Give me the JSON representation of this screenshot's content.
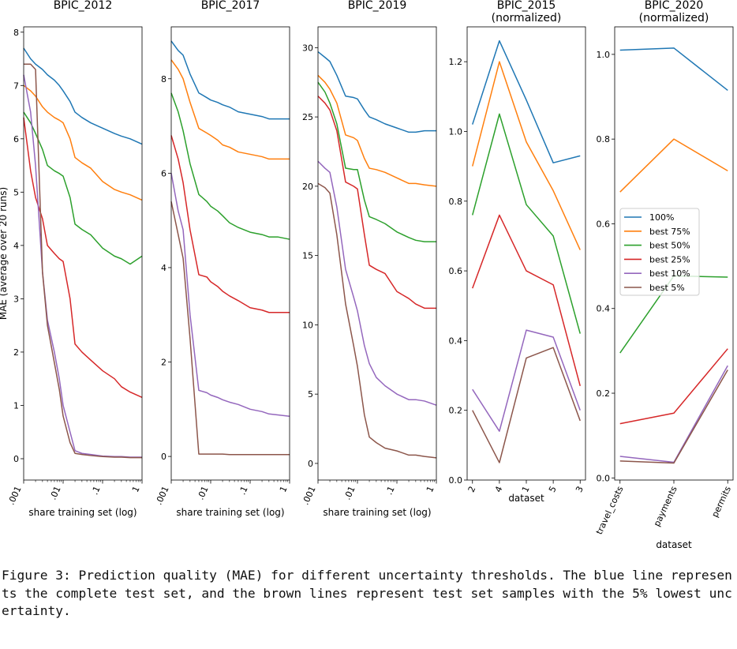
{
  "caption": "Figure 3: Prediction quality (MAE) for different uncertainty thresholds. The blue line represents the complete test set, and the brown lines represent test set samples with the 5% lowest uncertainty.",
  "series_names": [
    "100%",
    "best 75%",
    "best 50%",
    "best 25%",
    "best 10%",
    "best 5%"
  ],
  "series_colors": [
    "#1f77b4",
    "#ff7f0e",
    "#2ca02c",
    "#d62728",
    "#9467bd",
    "#8c564b"
  ],
  "chart_data": [
    {
      "type": "line",
      "title": "BPIC_2012",
      "xlabel": "share training set (log)",
      "ylabel": "MAE (average over 20 runs)",
      "x_scale": "log",
      "xlim": [
        0.001,
        1
      ],
      "ylim": [
        -0.4,
        8.1
      ],
      "yticks": [
        0,
        1,
        2,
        3,
        4,
        5,
        6,
        7,
        8
      ],
      "ytick_labels": [
        "0",
        "1",
        "2",
        "3",
        "4",
        "5",
        "6",
        "7",
        "8"
      ],
      "xticks": [
        0.001,
        0.01,
        0.1,
        1
      ],
      "xtick_labels": [
        ".001",
        ".01",
        ".1",
        "1"
      ],
      "x": [
        0.001,
        0.0015,
        0.002,
        0.003,
        0.004,
        0.006,
        0.008,
        0.01,
        0.015,
        0.02,
        0.03,
        0.05,
        0.1,
        0.2,
        0.3,
        0.5,
        1.0
      ],
      "series": [
        {
          "name": "100%",
          "values": [
            7.7,
            7.5,
            7.4,
            7.3,
            7.2,
            7.1,
            7.0,
            6.9,
            6.7,
            6.5,
            6.4,
            6.3,
            6.2,
            6.1,
            6.05,
            6.0,
            5.9
          ]
        },
        {
          "name": "best 75%",
          "values": [
            7.0,
            6.9,
            6.8,
            6.6,
            6.5,
            6.4,
            6.35,
            6.3,
            6.0,
            5.65,
            5.55,
            5.45,
            5.2,
            5.05,
            5.0,
            4.95,
            4.85
          ]
        },
        {
          "name": "best 50%",
          "values": [
            6.5,
            6.3,
            6.1,
            5.8,
            5.5,
            5.4,
            5.35,
            5.3,
            4.9,
            4.4,
            4.3,
            4.2,
            3.95,
            3.8,
            3.75,
            3.65,
            3.8
          ]
        },
        {
          "name": "best 25%",
          "values": [
            6.4,
            5.4,
            4.9,
            4.5,
            4.0,
            3.85,
            3.75,
            3.7,
            3.0,
            2.15,
            2.0,
            1.85,
            1.65,
            1.5,
            1.35,
            1.25,
            1.15
          ]
        },
        {
          "name": "best 10%",
          "values": [
            7.2,
            6.5,
            5.5,
            3.5,
            2.6,
            2.0,
            1.5,
            1.0,
            0.5,
            0.15,
            0.1,
            0.08,
            0.05,
            0.04,
            0.04,
            0.03,
            0.03
          ]
        },
        {
          "name": "best 5%",
          "values": [
            7.4,
            7.4,
            7.3,
            3.5,
            2.5,
            1.8,
            1.3,
            0.8,
            0.3,
            0.1,
            0.08,
            0.06,
            0.04,
            0.03,
            0.03,
            0.02,
            0.02
          ]
        }
      ]
    },
    {
      "type": "line",
      "title": "BPIC_2017",
      "xlabel": "share training set (log)",
      "ylabel": "",
      "x_scale": "log",
      "xlim": [
        0.001,
        1
      ],
      "ylim": [
        -0.5,
        9.1
      ],
      "yticks": [
        0,
        2,
        4,
        6,
        8
      ],
      "ytick_labels": [
        "0",
        "2",
        "4",
        "6",
        "8"
      ],
      "xticks": [
        0.001,
        0.01,
        0.1,
        1
      ],
      "xtick_labels": [
        ".001",
        ".01",
        ".1",
        "1"
      ],
      "x": [
        0.001,
        0.0015,
        0.002,
        0.003,
        0.005,
        0.008,
        0.01,
        0.015,
        0.02,
        0.03,
        0.05,
        0.1,
        0.2,
        0.3,
        0.5,
        1.0
      ],
      "series": [
        {
          "name": "100%",
          "values": [
            8.8,
            8.6,
            8.5,
            8.1,
            7.7,
            7.6,
            7.55,
            7.5,
            7.45,
            7.4,
            7.3,
            7.25,
            7.2,
            7.15,
            7.15,
            7.15
          ]
        },
        {
          "name": "best 75%",
          "values": [
            8.4,
            8.2,
            8.0,
            7.5,
            6.95,
            6.85,
            6.8,
            6.7,
            6.6,
            6.55,
            6.45,
            6.4,
            6.35,
            6.3,
            6.3,
            6.3
          ]
        },
        {
          "name": "best 50%",
          "values": [
            7.7,
            7.3,
            6.9,
            6.2,
            5.55,
            5.4,
            5.3,
            5.2,
            5.1,
            4.95,
            4.85,
            4.75,
            4.7,
            4.65,
            4.65,
            4.6
          ]
        },
        {
          "name": "best 25%",
          "values": [
            6.8,
            6.3,
            5.8,
            4.8,
            3.85,
            3.8,
            3.7,
            3.6,
            3.5,
            3.4,
            3.3,
            3.15,
            3.1,
            3.05,
            3.05,
            3.05
          ]
        },
        {
          "name": "best 10%",
          "values": [
            6.0,
            5.2,
            4.8,
            3.0,
            1.4,
            1.35,
            1.3,
            1.25,
            1.2,
            1.15,
            1.1,
            1.0,
            0.95,
            0.9,
            0.88,
            0.85
          ]
        },
        {
          "name": "best 5%",
          "values": [
            5.4,
            4.7,
            4.2,
            2.5,
            0.05,
            0.05,
            0.05,
            0.05,
            0.05,
            0.04,
            0.04,
            0.04,
            0.04,
            0.04,
            0.04,
            0.04
          ]
        }
      ]
    },
    {
      "type": "line",
      "title": "BPIC_2019",
      "xlabel": "share training set (log)",
      "ylabel": "",
      "x_scale": "log",
      "xlim": [
        0.001,
        1
      ],
      "ylim": [
        -1.2,
        31.5
      ],
      "yticks": [
        0,
        5,
        10,
        15,
        20,
        25,
        30
      ],
      "ytick_labels": [
        "0",
        "5",
        "10",
        "15",
        "20",
        "25",
        "30"
      ],
      "xticks": [
        0.001,
        0.01,
        0.1,
        1
      ],
      "xtick_labels": [
        ".001",
        ".01",
        ".1",
        "1"
      ],
      "x": [
        0.001,
        0.0015,
        0.002,
        0.003,
        0.005,
        0.008,
        0.01,
        0.015,
        0.02,
        0.03,
        0.05,
        0.1,
        0.2,
        0.3,
        0.5,
        1.0
      ],
      "series": [
        {
          "name": "100%",
          "values": [
            29.7,
            29.3,
            29.0,
            28.0,
            26.5,
            26.4,
            26.3,
            25.5,
            25.0,
            24.8,
            24.5,
            24.2,
            23.9,
            23.9,
            24.0,
            24.0
          ]
        },
        {
          "name": "best 75%",
          "values": [
            28.0,
            27.5,
            27.0,
            26.0,
            23.7,
            23.5,
            23.3,
            22.0,
            21.3,
            21.2,
            21.0,
            20.6,
            20.2,
            20.2,
            20.1,
            20.0
          ]
        },
        {
          "name": "best 50%",
          "values": [
            27.5,
            26.8,
            26.0,
            24.5,
            21.3,
            21.2,
            21.2,
            19.0,
            17.8,
            17.6,
            17.3,
            16.7,
            16.3,
            16.1,
            16.0,
            16.0
          ]
        },
        {
          "name": "best 25%",
          "values": [
            26.5,
            26.0,
            25.5,
            24.0,
            20.3,
            20.0,
            19.8,
            16.5,
            14.3,
            14.0,
            13.7,
            12.4,
            11.9,
            11.5,
            11.2,
            11.2
          ]
        },
        {
          "name": "best 10%",
          "values": [
            21.8,
            21.3,
            21.0,
            18.5,
            14.0,
            12.0,
            11.0,
            8.5,
            7.2,
            6.2,
            5.6,
            5.0,
            4.6,
            4.6,
            4.5,
            4.2
          ]
        },
        {
          "name": "best 5%",
          "values": [
            20.2,
            19.9,
            19.5,
            16.5,
            11.5,
            8.5,
            7.0,
            3.5,
            1.9,
            1.5,
            1.1,
            0.9,
            0.6,
            0.6,
            0.5,
            0.4
          ]
        }
      ]
    },
    {
      "type": "line",
      "title": "BPIC_2015\n(normalized)",
      "xlabel": "dataset",
      "ylabel": "",
      "x_scale": "category",
      "ylim": [
        0.0,
        1.3
      ],
      "yticks": [
        0.0,
        0.2,
        0.4,
        0.6,
        0.8,
        1.0,
        1.2
      ],
      "ytick_labels": [
        "0.0",
        "0.2",
        "0.4",
        "0.6",
        "0.8",
        "1.0",
        "1.2"
      ],
      "categories": [
        "2",
        "4",
        "1",
        "5",
        "3"
      ],
      "series": [
        {
          "name": "100%",
          "values": [
            1.02,
            1.26,
            1.09,
            0.91,
            0.93
          ]
        },
        {
          "name": "best 75%",
          "values": [
            0.9,
            1.2,
            0.97,
            0.83,
            0.66
          ]
        },
        {
          "name": "best 50%",
          "values": [
            0.76,
            1.05,
            0.79,
            0.7,
            0.42
          ]
        },
        {
          "name": "best 25%",
          "values": [
            0.55,
            0.76,
            0.6,
            0.56,
            0.27
          ]
        },
        {
          "name": "best 10%",
          "values": [
            0.26,
            0.14,
            0.43,
            0.41,
            0.2
          ]
        },
        {
          "name": "best 5%",
          "values": [
            0.2,
            0.05,
            0.35,
            0.38,
            0.17
          ]
        }
      ]
    },
    {
      "type": "line",
      "title": "BPIC_2020\n(normalized)",
      "xlabel": "dataset",
      "ylabel": "",
      "x_scale": "category",
      "legend": "center-left",
      "ylim": [
        -0.005,
        1.065
      ],
      "yticks": [
        0.0,
        0.2,
        0.4,
        0.6,
        0.8,
        1.0
      ],
      "ytick_labels": [
        "0.0",
        "0.2",
        "0.4",
        "0.6",
        "0.8",
        "1.0"
      ],
      "categories": [
        "travel_costs",
        "payments",
        "permits"
      ],
      "series": [
        {
          "name": "100%",
          "values": [
            1.01,
            1.015,
            0.915
          ]
        },
        {
          "name": "best 75%",
          "values": [
            0.675,
            0.8,
            0.725
          ]
        },
        {
          "name": "best 50%",
          "values": [
            0.295,
            0.477,
            0.474
          ]
        },
        {
          "name": "best 25%",
          "values": [
            0.128,
            0.153,
            0.305
          ]
        },
        {
          "name": "best 10%",
          "values": [
            0.051,
            0.037,
            0.265
          ]
        },
        {
          "name": "best 5%",
          "values": [
            0.04,
            0.035,
            0.255
          ]
        }
      ]
    }
  ]
}
